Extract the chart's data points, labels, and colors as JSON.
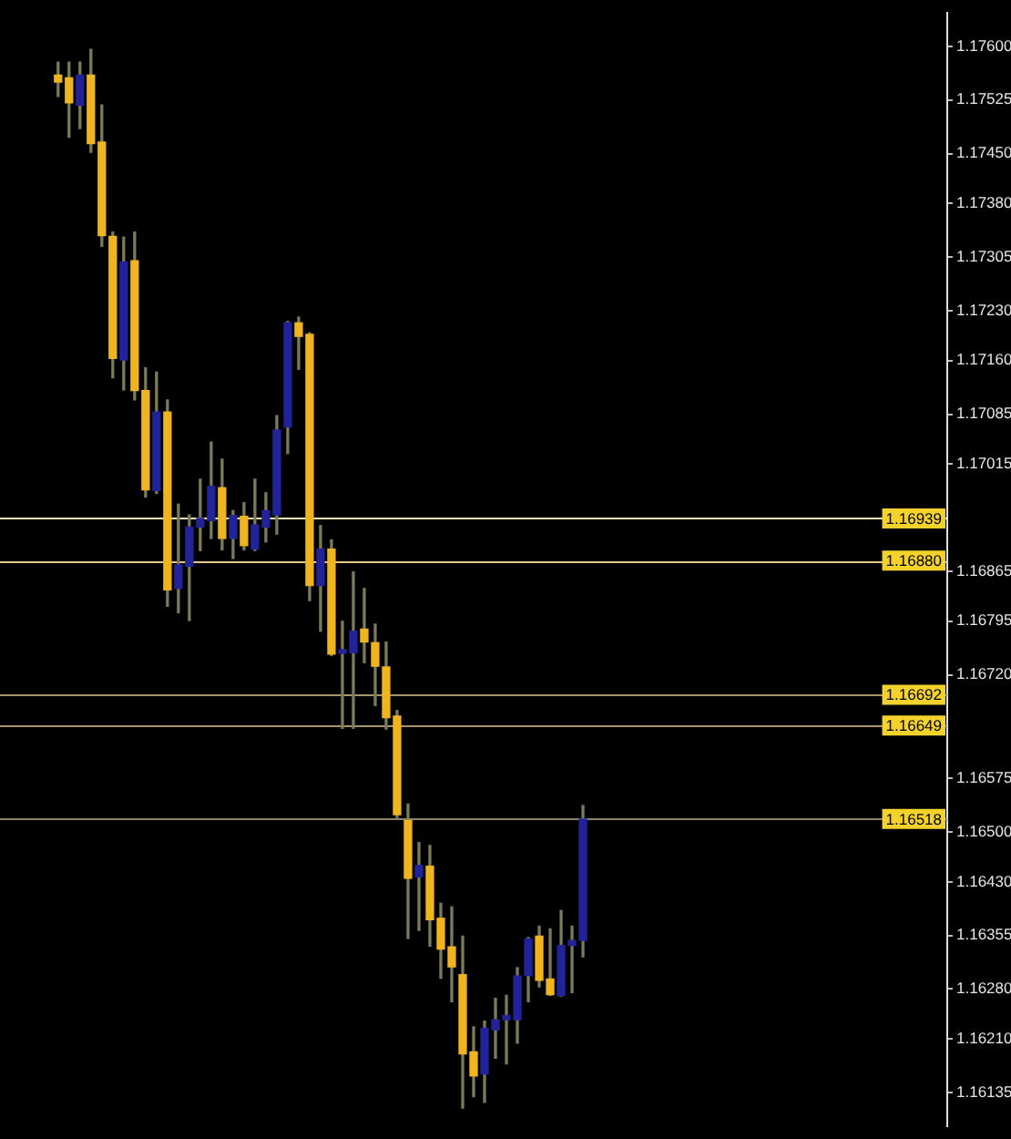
{
  "chart_data": {
    "type": "candlestick",
    "categories": [
      null,
      null,
      null,
      null,
      null,
      null,
      null,
      null,
      null,
      null,
      null,
      null,
      null,
      null,
      null,
      null,
      null,
      null,
      null,
      null,
      null,
      null,
      null,
      null,
      null,
      null,
      null,
      null,
      null,
      null,
      null,
      null,
      null,
      null,
      null,
      null,
      null,
      null,
      null,
      null,
      null,
      null,
      null,
      null,
      null,
      null,
      null,
      null,
      null,
      null,
      null,
      null,
      null,
      null,
      null,
      null,
      null,
      null,
      null,
      null,
      null,
      null,
      null,
      null,
      null,
      null,
      null,
      null,
      null,
      null,
      null,
      null,
      null,
      null,
      null,
      null,
      null
    ],
    "ohlc": [
      [
        1.1756,
        1.17578,
        1.1753,
        1.1755
      ],
      [
        1.17556,
        1.17578,
        1.17473,
        1.17521
      ],
      [
        1.17518,
        1.17578,
        1.17485,
        1.1756
      ],
      [
        1.1756,
        1.17596,
        1.17452,
        1.17464
      ],
      [
        1.17466,
        1.17518,
        1.1732,
        1.17335
      ],
      [
        1.17334,
        1.1734,
        1.17136,
        1.17163
      ],
      [
        1.17161,
        1.17333,
        1.17119,
        1.17298
      ],
      [
        1.173,
        1.1734,
        1.17105,
        1.17118
      ],
      [
        1.17118,
        1.1715,
        1.16969,
        1.16979
      ],
      [
        1.16978,
        1.17144,
        1.16974,
        1.17088
      ],
      [
        1.17088,
        1.17105,
        1.16816,
        1.16839
      ],
      [
        1.16841,
        1.16959,
        1.16807,
        1.16874
      ],
      [
        1.16872,
        1.16944,
        1.16796,
        1.16927
      ],
      [
        1.16927,
        1.16994,
        1.16894,
        1.16939
      ],
      [
        1.16936,
        1.17046,
        1.16911,
        1.16984
      ],
      [
        1.16982,
        1.17022,
        1.16895,
        1.16911
      ],
      [
        1.16911,
        1.1695,
        1.16883,
        1.16943
      ],
      [
        1.16942,
        1.16961,
        1.16895,
        1.16901
      ],
      [
        1.16896,
        1.16994,
        1.16894,
        1.1693
      ],
      [
        1.16927,
        1.16975,
        1.16906,
        1.1695
      ],
      [
        1.16944,
        1.17083,
        1.16917,
        1.17063
      ],
      [
        1.17067,
        1.17215,
        1.1703,
        1.17213
      ],
      [
        1.17213,
        1.17221,
        1.17148,
        1.17194
      ],
      [
        1.17197,
        1.17199,
        1.16824,
        1.16845
      ],
      [
        1.16845,
        1.16929,
        1.16781,
        1.16896
      ],
      [
        1.16896,
        1.16909,
        1.16747,
        1.16749
      ],
      [
        1.1675,
        1.16795,
        1.16645,
        1.16752
      ],
      [
        1.16751,
        1.16864,
        1.16645,
        1.16781
      ],
      [
        1.16784,
        1.16841,
        1.16737,
        1.16766
      ],
      [
        1.16765,
        1.16791,
        1.16677,
        1.16732
      ],
      [
        1.16731,
        1.16766,
        1.16644,
        1.1666
      ],
      [
        1.16662,
        1.1667,
        1.16518,
        1.16524
      ],
      [
        1.16516,
        1.16539,
        1.16351,
        1.16435
      ],
      [
        1.16437,
        1.16485,
        1.16362,
        1.16453
      ],
      [
        1.16452,
        1.16481,
        1.1634,
        1.16377
      ],
      [
        1.16379,
        1.164,
        1.16295,
        1.16336
      ],
      [
        1.16339,
        1.16395,
        1.16262,
        1.16311
      ],
      [
        1.163,
        1.16354,
        1.16113,
        1.16189
      ],
      [
        1.16192,
        1.16227,
        1.16129,
        1.16158
      ],
      [
        1.16161,
        1.16235,
        1.16121,
        1.16225
      ],
      [
        1.16223,
        1.16267,
        1.16183,
        1.16237
      ],
      [
        1.16237,
        1.16271,
        1.16175,
        1.16243
      ],
      [
        1.16237,
        1.1631,
        1.16204,
        1.16298
      ],
      [
        1.16299,
        1.16352,
        1.16262,
        1.1635
      ],
      [
        1.16354,
        1.16368,
        1.16283,
        1.16292
      ],
      [
        1.16294,
        1.16364,
        1.16271,
        1.16272
      ],
      [
        1.16271,
        1.1639,
        1.1627,
        1.16341
      ],
      [
        1.16341,
        1.16368,
        1.16275,
        1.16348
      ],
      [
        1.16348,
        1.16537,
        1.16325,
        1.16518
      ],
      null,
      null,
      null,
      null,
      null,
      null,
      null,
      null,
      null,
      null,
      null,
      null,
      null,
      null,
      null,
      null,
      null,
      null,
      null,
      null,
      null,
      null,
      null,
      null,
      null,
      null,
      null,
      null
    ],
    "colors": [
      "#f0b41e",
      "#f0b41e",
      "#22229a",
      "#f0b41e",
      "#f0b41e",
      "#f0b41e",
      "#22229a",
      "#f0b41e",
      "#f0b41e",
      "#22229a",
      "#f0b41e",
      "#22229a",
      "#22229a",
      "#22229a",
      "#22229a",
      "#f0b41e",
      "#22229a",
      "#f0b41e",
      "#22229a",
      "#22229a",
      "#22229a",
      "#22229a",
      "#f0b41e",
      "#f0b41e",
      "#22229a",
      "#f0b41e",
      "#22229a",
      "#22229a",
      "#f0b41e",
      "#f0b41e",
      "#f0b41e",
      "#f0b41e",
      "#f0b41e",
      "#22229a",
      "#f0b41e",
      "#f0b41e",
      "#f0b41e",
      "#f0b41e",
      "#f0b41e",
      "#22229a",
      "#22229a",
      "#22229a",
      "#22229a",
      "#22229a",
      "#f0b41e",
      "#f0b41e",
      "#22229a",
      "#22229a",
      "#22229a",
      null,
      null,
      null,
      null,
      null,
      null,
      null,
      null,
      null,
      null,
      null,
      null,
      null,
      null,
      null,
      null,
      null,
      null,
      null,
      null,
      null,
      null,
      null,
      null,
      null,
      null,
      null,
      null
    ],
    "ylim": [
      1.16088,
      1.17647
    ],
    "yticks": [
      {
        "value": 1.176,
        "label": "1.17600"
      },
      {
        "value": 1.17525,
        "label": "1.17525"
      },
      {
        "value": 1.1745,
        "label": "1.17450"
      },
      {
        "value": 1.1738,
        "label": "1.17380"
      },
      {
        "value": 1.17305,
        "label": "1.17305"
      },
      {
        "value": 1.1723,
        "label": "1.17230"
      },
      {
        "value": 1.1716,
        "label": "1.17160"
      },
      {
        "value": 1.17085,
        "label": "1.17085"
      },
      {
        "value": 1.17015,
        "label": "1.17015"
      },
      {
        "value": 1.16865,
        "label": "1.16865"
      },
      {
        "value": 1.16795,
        "label": "1.16795"
      },
      {
        "value": 1.1672,
        "label": "1.16720"
      },
      {
        "value": 1.16575,
        "label": "1.16575"
      },
      {
        "value": 1.165,
        "label": "1.16500"
      },
      {
        "value": 1.1643,
        "label": "1.16430"
      },
      {
        "value": 1.16355,
        "label": "1.16355"
      },
      {
        "value": 1.1628,
        "label": "1.16280"
      },
      {
        "value": 1.1621,
        "label": "1.16210"
      },
      {
        "value": 1.16135,
        "label": "1.16135"
      }
    ],
    "ref_lines": [
      {
        "axis": "y",
        "value": 1.16939,
        "label": "1.16939",
        "color": "#f2e6b4"
      },
      {
        "axis": "y",
        "value": 1.1688,
        "label": "1.16880",
        "color": "#e6c98a"
      },
      {
        "axis": "y",
        "value": 1.16692,
        "label": "1.16692",
        "color": "#a89468"
      },
      {
        "axis": "y",
        "value": 1.16649,
        "label": "1.16649",
        "color": "#a89468"
      },
      {
        "axis": "y",
        "value": 1.16518,
        "label": "1.16518",
        "color": "#8c8468"
      }
    ],
    "grid": false,
    "legend": false,
    "tick_labels": "y"
  }
}
